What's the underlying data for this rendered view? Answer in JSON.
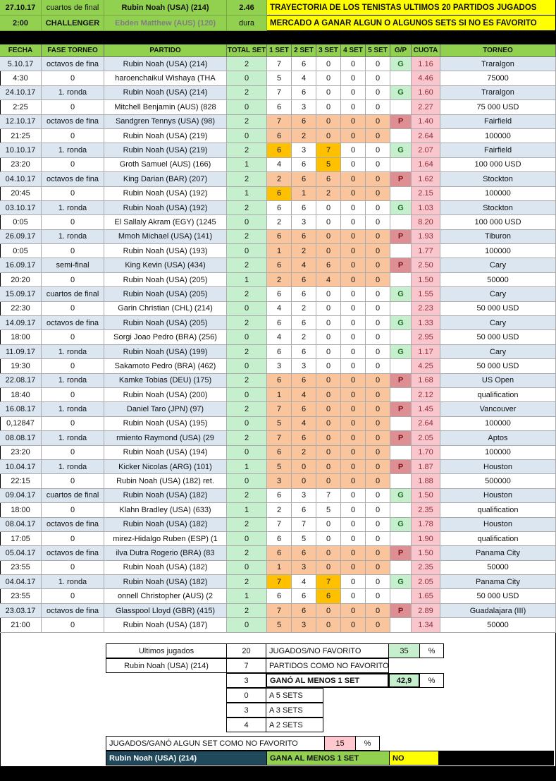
{
  "top": {
    "date": "27.10.17",
    "phase": "cuartos de final",
    "player": "Rubin Noah (USA) (214)",
    "odds": "2.46",
    "time": "2:00",
    "category": "CHALLENGER",
    "opponent": "Ebden Matthew (AUS) (120)",
    "surface": "dura",
    "banner1": "TRAYECTORIA DE LOS TENISTAS ULTIMOS 20 PARTIDOS JUGADOS",
    "banner2": "MERCADO A GANAR ALGUN O ALGUNOS SETS SI NO ES FAVORITO"
  },
  "table": {
    "columns": [
      "FECHA",
      "FASE TORNEO",
      "PARTIDO",
      "TOTAL SET",
      "1 SET",
      "2 SET",
      "3 SET",
      "4 SET",
      "5 SET",
      "G/P",
      "CUOTA",
      "TORNEO"
    ],
    "rows": [
      {
        "fecha": "5.10.17",
        "fase": "octavos de fina",
        "partido": "Rubin Noah (USA) (214)",
        "total": "2",
        "sets": [
          "7",
          "6",
          "0",
          "0",
          "0"
        ],
        "gp": "G",
        "cuota": "1.16",
        "torneo": "Traralgon",
        "band": true,
        "peach": false,
        "gold": []
      },
      {
        "fecha": "4:30",
        "fase": "0",
        "partido": "haroenchaikul Wishaya (THA",
        "total": "0",
        "sets": [
          "5",
          "4",
          "0",
          "0",
          "0"
        ],
        "gp": "",
        "cuota": "4.46",
        "torneo": "75000",
        "band": false,
        "peach": false,
        "gold": []
      },
      {
        "fecha": "24.10.17",
        "fase": "1. ronda",
        "partido": "Rubin Noah (USA) (214)",
        "total": "2",
        "sets": [
          "7",
          "6",
          "0",
          "0",
          "0"
        ],
        "gp": "G",
        "cuota": "1.60",
        "torneo": "Traralgon",
        "band": true,
        "peach": false,
        "gold": []
      },
      {
        "fecha": "2:25",
        "fase": "0",
        "partido": "Mitchell Benjamin (AUS) (828",
        "total": "0",
        "sets": [
          "6",
          "3",
          "0",
          "0",
          "0"
        ],
        "gp": "",
        "cuota": "2.27",
        "torneo": "75 000 USD",
        "band": false,
        "peach": false,
        "gold": []
      },
      {
        "fecha": "12.10.17",
        "fase": "octavos de fina",
        "partido": "Sandgren Tennys (USA) (98)",
        "total": "2",
        "sets": [
          "7",
          "6",
          "0",
          "0",
          "0"
        ],
        "gp": "P",
        "cuota": "1.40",
        "torneo": "Fairfield",
        "band": true,
        "peach": true,
        "gold": []
      },
      {
        "fecha": "21:25",
        "fase": "0",
        "partido": "Rubin Noah (USA) (219)",
        "total": "0",
        "sets": [
          "6",
          "2",
          "0",
          "0",
          "0"
        ],
        "gp": "",
        "cuota": "2.64",
        "torneo": "100000",
        "band": false,
        "peach": true,
        "gold": []
      },
      {
        "fecha": "10.10.17",
        "fase": "1. ronda",
        "partido": "Rubin Noah (USA) (219)",
        "total": "2",
        "sets": [
          "6",
          "3",
          "7",
          "0",
          "0"
        ],
        "gp": "G",
        "cuota": "2.07",
        "torneo": "Fairfield",
        "band": true,
        "peach": false,
        "gold": [
          0,
          2
        ]
      },
      {
        "fecha": "23:20",
        "fase": "0",
        "partido": "Groth Samuel (AUS) (166)",
        "total": "1",
        "sets": [
          "4",
          "6",
          "5",
          "0",
          "0"
        ],
        "gp": "",
        "cuota": "1.64",
        "torneo": "100 000 USD",
        "band": false,
        "peach": false,
        "gold": [
          2
        ]
      },
      {
        "fecha": "04.10.17",
        "fase": "octavos de fina",
        "partido": "King Darian (BAR) (207)",
        "total": "2",
        "sets": [
          "2",
          "6",
          "6",
          "0",
          "0"
        ],
        "gp": "P",
        "cuota": "1.62",
        "torneo": "Stockton",
        "band": true,
        "peach": true,
        "gold": []
      },
      {
        "fecha": "20:45",
        "fase": "0",
        "partido": "Rubin Noah (USA) (192)",
        "total": "1",
        "sets": [
          "6",
          "1",
          "2",
          "0",
          "0"
        ],
        "gp": "",
        "cuota": "2.15",
        "torneo": "100000",
        "band": false,
        "peach": true,
        "gold": [
          0
        ]
      },
      {
        "fecha": "03.10.17",
        "fase": "1. ronda",
        "partido": "Rubin Noah (USA) (192)",
        "total": "2",
        "sets": [
          "6",
          "6",
          "0",
          "0",
          "0"
        ],
        "gp": "G",
        "cuota": "1.03",
        "torneo": "Stockton",
        "band": true,
        "peach": false,
        "gold": []
      },
      {
        "fecha": "0:05",
        "fase": "0",
        "partido": "El Sallaly Akram (EGY) (1245",
        "total": "0",
        "sets": [
          "2",
          "3",
          "0",
          "0",
          "0"
        ],
        "gp": "",
        "cuota": "8.20",
        "torneo": "100 000 USD",
        "band": false,
        "peach": false,
        "gold": []
      },
      {
        "fecha": "26.09.17",
        "fase": "1. ronda",
        "partido": "Mmoh Michael (USA) (141)",
        "total": "2",
        "sets": [
          "6",
          "6",
          "0",
          "0",
          "0"
        ],
        "gp": "P",
        "cuota": "1.93",
        "torneo": "Tiburon",
        "band": true,
        "peach": true,
        "gold": []
      },
      {
        "fecha": "0:05",
        "fase": "0",
        "partido": "Rubin Noah (USA) (193)",
        "total": "0",
        "sets": [
          "1",
          "2",
          "0",
          "0",
          "0"
        ],
        "gp": "",
        "cuota": "1.77",
        "torneo": "100000",
        "band": false,
        "peach": true,
        "gold": []
      },
      {
        "fecha": "16.09.17",
        "fase": "semi-final",
        "partido": "King Kevin (USA) (434)",
        "total": "2",
        "sets": [
          "6",
          "4",
          "6",
          "0",
          "0"
        ],
        "gp": "P",
        "cuota": "2.50",
        "torneo": "Cary",
        "band": true,
        "peach": true,
        "gold": []
      },
      {
        "fecha": "20:20",
        "fase": "0",
        "partido": "Rubin Noah (USA) (205)",
        "total": "1",
        "sets": [
          "2",
          "6",
          "4",
          "0",
          "0"
        ],
        "gp": "",
        "cuota": "1.50",
        "torneo": "50000",
        "band": false,
        "peach": true,
        "gold": []
      },
      {
        "fecha": "15.09.17",
        "fase": "cuartos de final",
        "partido": "Rubin Noah (USA) (205)",
        "total": "2",
        "sets": [
          "6",
          "6",
          "0",
          "0",
          "0"
        ],
        "gp": "G",
        "cuota": "1.55",
        "torneo": "Cary",
        "band": true,
        "peach": false,
        "gold": []
      },
      {
        "fecha": "22:30",
        "fase": "0",
        "partido": "Garin Christian (CHL) (214)",
        "total": "0",
        "sets": [
          "4",
          "2",
          "0",
          "0",
          "0"
        ],
        "gp": "",
        "cuota": "2.23",
        "torneo": "50 000 USD",
        "band": false,
        "peach": false,
        "gold": []
      },
      {
        "fecha": "14.09.17",
        "fase": "octavos de fina",
        "partido": "Rubin Noah (USA) (205)",
        "total": "2",
        "sets": [
          "6",
          "6",
          "0",
          "0",
          "0"
        ],
        "gp": "G",
        "cuota": "1.33",
        "torneo": "Cary",
        "band": true,
        "peach": false,
        "gold": []
      },
      {
        "fecha": "18:00",
        "fase": "0",
        "partido": "Sorgi Joao Pedro (BRA) (256)",
        "total": "0",
        "sets": [
          "4",
          "2",
          "0",
          "0",
          "0"
        ],
        "gp": "",
        "cuota": "2.95",
        "torneo": "50 000 USD",
        "band": false,
        "peach": false,
        "gold": []
      },
      {
        "fecha": "11.09.17",
        "fase": "1. ronda",
        "partido": "Rubin Noah (USA) (199)",
        "total": "2",
        "sets": [
          "6",
          "6",
          "0",
          "0",
          "0"
        ],
        "gp": "G",
        "cuota": "1.17",
        "torneo": "Cary",
        "band": true,
        "peach": false,
        "gold": []
      },
      {
        "fecha": "19:30",
        "fase": "0",
        "partido": "Sakamoto Pedro (BRA) (462)",
        "total": "0",
        "sets": [
          "3",
          "3",
          "0",
          "0",
          "0"
        ],
        "gp": "",
        "cuota": "4.25",
        "torneo": "50 000 USD",
        "band": false,
        "peach": false,
        "gold": []
      },
      {
        "fecha": "22.08.17",
        "fase": "1. ronda",
        "partido": "Kamke Tobias (DEU) (175)",
        "total": "2",
        "sets": [
          "6",
          "6",
          "0",
          "0",
          "0"
        ],
        "gp": "P",
        "cuota": "1.68",
        "torneo": "US Open",
        "band": true,
        "peach": true,
        "gold": []
      },
      {
        "fecha": "18:40",
        "fase": "0",
        "partido": "Rubin Noah (USA) (200)",
        "total": "0",
        "sets": [
          "1",
          "4",
          "0",
          "0",
          "0"
        ],
        "gp": "",
        "cuota": "2.12",
        "torneo": "qualification",
        "band": false,
        "peach": true,
        "gold": []
      },
      {
        "fecha": "16.08.17",
        "fase": "1. ronda",
        "partido": "Daniel Taro (JPN) (97)",
        "total": "2",
        "sets": [
          "7",
          "6",
          "0",
          "0",
          "0"
        ],
        "gp": "P",
        "cuota": "1.45",
        "torneo": "Vancouver",
        "band": true,
        "peach": true,
        "gold": []
      },
      {
        "fecha": "0,12847",
        "fase": "0",
        "partido": "Rubin Noah (USA) (195)",
        "total": "0",
        "sets": [
          "5",
          "4",
          "0",
          "0",
          "0"
        ],
        "gp": "",
        "cuota": "2.64",
        "torneo": "100000",
        "band": false,
        "peach": true,
        "gold": []
      },
      {
        "fecha": "08.08.17",
        "fase": "1. ronda",
        "partido": "rmiento Raymond (USA) (29",
        "total": "2",
        "sets": [
          "7",
          "6",
          "0",
          "0",
          "0"
        ],
        "gp": "P",
        "cuota": "2.05",
        "torneo": "Aptos",
        "band": true,
        "peach": true,
        "gold": []
      },
      {
        "fecha": "23:20",
        "fase": "0",
        "partido": "Rubin Noah (USA) (194)",
        "total": "0",
        "sets": [
          "6",
          "2",
          "0",
          "0",
          "0"
        ],
        "gp": "",
        "cuota": "1.70",
        "torneo": "100000",
        "band": false,
        "peach": true,
        "gold": []
      },
      {
        "fecha": "10.04.17",
        "fase": "1. ronda",
        "partido": "Kicker Nicolas (ARG) (101)",
        "total": "1",
        "sets": [
          "5",
          "0",
          "0",
          "0",
          "0"
        ],
        "gp": "P",
        "cuota": "1.87",
        "torneo": "Houston",
        "band": true,
        "peach": true,
        "gold": []
      },
      {
        "fecha": "22:15",
        "fase": "0",
        "partido": "Rubin Noah (USA) (182) ret.",
        "total": "0",
        "sets": [
          "3",
          "0",
          "0",
          "0",
          "0"
        ],
        "gp": "",
        "cuota": "1.88",
        "torneo": "500000",
        "band": false,
        "peach": true,
        "gold": []
      },
      {
        "fecha": "09.04.17",
        "fase": "cuartos de final",
        "partido": "Rubin Noah (USA) (182)",
        "total": "2",
        "sets": [
          "6",
          "3",
          "7",
          "0",
          "0"
        ],
        "gp": "G",
        "cuota": "1.50",
        "torneo": "Houston",
        "band": true,
        "peach": false,
        "gold": []
      },
      {
        "fecha": "18:00",
        "fase": "0",
        "partido": "Klahn Bradley (USA) (633)",
        "total": "1",
        "sets": [
          "2",
          "6",
          "5",
          "0",
          "0"
        ],
        "gp": "",
        "cuota": "2.35",
        "torneo": "qualification",
        "band": false,
        "peach": false,
        "gold": []
      },
      {
        "fecha": "08.04.17",
        "fase": "octavos de fina",
        "partido": "Rubin Noah (USA) (182)",
        "total": "2",
        "sets": [
          "7",
          "7",
          "0",
          "0",
          "0"
        ],
        "gp": "G",
        "cuota": "1.78",
        "torneo": "Houston",
        "band": true,
        "peach": false,
        "gold": []
      },
      {
        "fecha": "17:05",
        "fase": "0",
        "partido": "mirez-Hidalgo Ruben (ESP) (1",
        "total": "0",
        "sets": [
          "6",
          "5",
          "0",
          "0",
          "0"
        ],
        "gp": "",
        "cuota": "1.90",
        "torneo": "qualification",
        "band": false,
        "peach": false,
        "gold": []
      },
      {
        "fecha": "05.04.17",
        "fase": "octavos de fina",
        "partido": "ilva Dutra Rogerio (BRA) (83",
        "total": "2",
        "sets": [
          "6",
          "6",
          "0",
          "0",
          "0"
        ],
        "gp": "P",
        "cuota": "1.50",
        "torneo": "Panama City",
        "band": true,
        "peach": true,
        "gold": []
      },
      {
        "fecha": "23:55",
        "fase": "0",
        "partido": "Rubin Noah (USA) (182)",
        "total": "0",
        "sets": [
          "1",
          "3",
          "0",
          "0",
          "0"
        ],
        "gp": "",
        "cuota": "2.35",
        "torneo": "50000",
        "band": false,
        "peach": true,
        "gold": []
      },
      {
        "fecha": "04.04.17",
        "fase": "1. ronda",
        "partido": "Rubin Noah (USA) (182)",
        "total": "2",
        "sets": [
          "7",
          "4",
          "7",
          "0",
          "0"
        ],
        "gp": "G",
        "cuota": "2.05",
        "torneo": "Panama City",
        "band": true,
        "peach": false,
        "gold": [
          0,
          2
        ]
      },
      {
        "fecha": "23:55",
        "fase": "0",
        "partido": "onnell Christopher (AUS) (2",
        "total": "1",
        "sets": [
          "6",
          "6",
          "6",
          "0",
          "0"
        ],
        "gp": "",
        "cuota": "1.65",
        "torneo": "50 000 USD",
        "band": false,
        "peach": false,
        "gold": [
          2
        ]
      },
      {
        "fecha": "23.03.17",
        "fase": "octavos de fina",
        "partido": "Glasspool Lloyd (GBR) (415)",
        "total": "2",
        "sets": [
          "7",
          "6",
          "0",
          "0",
          "0"
        ],
        "gp": "P",
        "cuota": "2.89",
        "torneo": "Guadalajara (III)",
        "band": true,
        "peach": true,
        "gold": []
      },
      {
        "fecha": "21:00",
        "fase": "0",
        "partido": "Rubin Noah (USA) (187)",
        "total": "0",
        "sets": [
          "5",
          "3",
          "0",
          "0",
          "0"
        ],
        "gp": "",
        "cuota": "1.34",
        "torneo": "50000",
        "band": false,
        "peach": true,
        "gold": []
      }
    ]
  },
  "summary": {
    "ultimos_label": "Ultimos jugados",
    "ultimos_value": "20",
    "jugados_no_favorito_label": "JUGADOS/NO FAVORITO",
    "jugados_no_favorito_pct": "35",
    "pct": "%",
    "player": "Rubin Noah (USA) (214)",
    "no_favorito_value": "7",
    "no_favorito_label": "PARTIDOS COMO NO FAVORITO",
    "gano_value": "3",
    "gano_label": "GANÓ AL MENOS 1 SET",
    "gano_pct": "42,9",
    "a5_value": "0",
    "a5_label": "A 5 SETS",
    "a3_value": "3",
    "a3_label": "A 3 SETS",
    "a2_value": "4",
    "a2_label": "A 2 SETS",
    "footer_label": "JUGADOS/GANÓ ALGUN SET COMO NO FAVORITO",
    "footer_pct": "15",
    "final_player": "Rubin Noah (USA) (214)",
    "final_label": "GANA AL MENOS 1 SET",
    "final_answer": "NO"
  },
  "colors": {
    "header_green": "#92D050",
    "banner_yellow": "#FFFF00",
    "total_set_green": "#C6EFCE",
    "set_peach": "#FAC59C",
    "set_gold": "#FFC000",
    "cuota_pink": "#F8C6CC",
    "loss_bg": "#DE8F94",
    "band_blue": "#DCE6F1",
    "dark_player_bg": "#21495C"
  }
}
